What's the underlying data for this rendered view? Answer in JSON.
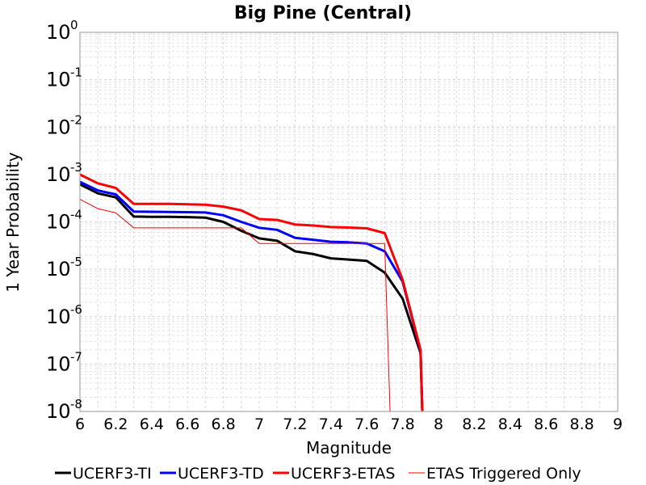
{
  "chart_data": {
    "type": "line",
    "title": "Big Pine (Central)",
    "xlabel": "Magnitude",
    "ylabel": "1 Year Probability",
    "xlim": [
      6,
      9
    ],
    "ylim": [
      1e-08,
      1
    ],
    "yscale": "log",
    "grid": true,
    "legend_position": "bottom",
    "x_ticks": [
      "6",
      "6.2",
      "6.4",
      "6.6",
      "6.8",
      "7",
      "7.2",
      "7.4",
      "7.6",
      "7.8",
      "8",
      "8.2",
      "8.4",
      "8.6",
      "8.8",
      "9"
    ],
    "y_ticks": [
      {
        "base": "10",
        "exp": "0"
      },
      {
        "base": "10",
        "exp": "-1"
      },
      {
        "base": "10",
        "exp": "-2"
      },
      {
        "base": "10",
        "exp": "-3"
      },
      {
        "base": "10",
        "exp": "-4"
      },
      {
        "base": "10",
        "exp": "-5"
      },
      {
        "base": "10",
        "exp": "-6"
      },
      {
        "base": "10",
        "exp": "-7"
      },
      {
        "base": "10",
        "exp": "-8"
      }
    ],
    "series": [
      {
        "name": "UCERF3-TI",
        "color": "#000000",
        "x": [
          6.0,
          6.1,
          6.2,
          6.3,
          6.4,
          6.5,
          6.6,
          6.7,
          6.8,
          6.9,
          7.0,
          7.1,
          7.2,
          7.3,
          7.4,
          7.5,
          7.6,
          7.7,
          7.8,
          7.9,
          7.91
        ],
        "y": [
          0.00062,
          0.0004,
          0.00033,
          0.00013,
          0.000128,
          0.000128,
          0.000126,
          0.000123,
          0.0001,
          6.5e-05,
          4.5e-05,
          4e-05,
          2.4e-05,
          2.1e-05,
          1.7e-05,
          1.6e-05,
          1.5e-05,
          8.5e-06,
          2.4e-06,
          1.7e-07,
          1e-08
        ]
      },
      {
        "name": "UCERF3-TD",
        "color": "#0000ff",
        "x": [
          6.0,
          6.1,
          6.2,
          6.3,
          6.4,
          6.5,
          6.6,
          6.7,
          6.8,
          6.9,
          7.0,
          7.1,
          7.2,
          7.3,
          7.4,
          7.5,
          7.6,
          7.7,
          7.8,
          7.9,
          7.91
        ],
        "y": [
          0.0007,
          0.00046,
          0.00038,
          0.000165,
          0.000163,
          0.000162,
          0.00016,
          0.000158,
          0.000138,
          0.0001,
          7.5e-05,
          6.8e-05,
          4.6e-05,
          4.2e-05,
          3.8e-05,
          3.7e-05,
          3.5e-05,
          2.4e-05,
          5.5e-06,
          1.9e-07,
          1e-08
        ]
      },
      {
        "name": "UCERF3-ETAS",
        "color": "#ff0000",
        "x": [
          6.0,
          6.1,
          6.2,
          6.3,
          6.4,
          6.5,
          6.6,
          6.7,
          6.8,
          6.9,
          7.0,
          7.1,
          7.2,
          7.3,
          7.4,
          7.5,
          7.6,
          7.7,
          7.8,
          7.9,
          7.91
        ],
        "y": [
          0.001,
          0.00065,
          0.00052,
          0.00024,
          0.00024,
          0.00024,
          0.000235,
          0.00023,
          0.00021,
          0.000175,
          0.000115,
          0.00011,
          8.8e-05,
          8.4e-05,
          7.8e-05,
          7.6e-05,
          7.3e-05,
          5.8e-05,
          6e-06,
          2e-07,
          1e-08
        ]
      },
      {
        "name": "ETAS Triggered Only",
        "color": "#ff0000",
        "x": [
          6.0,
          6.1,
          6.2,
          6.3,
          6.4,
          6.5,
          6.6,
          6.7,
          6.8,
          6.9,
          7.0,
          7.1,
          7.2,
          7.3,
          7.4,
          7.5,
          7.6,
          7.7,
          7.73
        ],
        "y": [
          0.0003,
          0.00019,
          0.000155,
          7.5e-05,
          7.5e-05,
          7.5e-05,
          7.5e-05,
          7.5e-05,
          7.5e-05,
          7.5e-05,
          3.5e-05,
          3.5e-05,
          3.5e-05,
          3.5e-05,
          3.5e-05,
          3.5e-05,
          3.5e-05,
          3.5e-05,
          1e-08
        ]
      }
    ]
  }
}
